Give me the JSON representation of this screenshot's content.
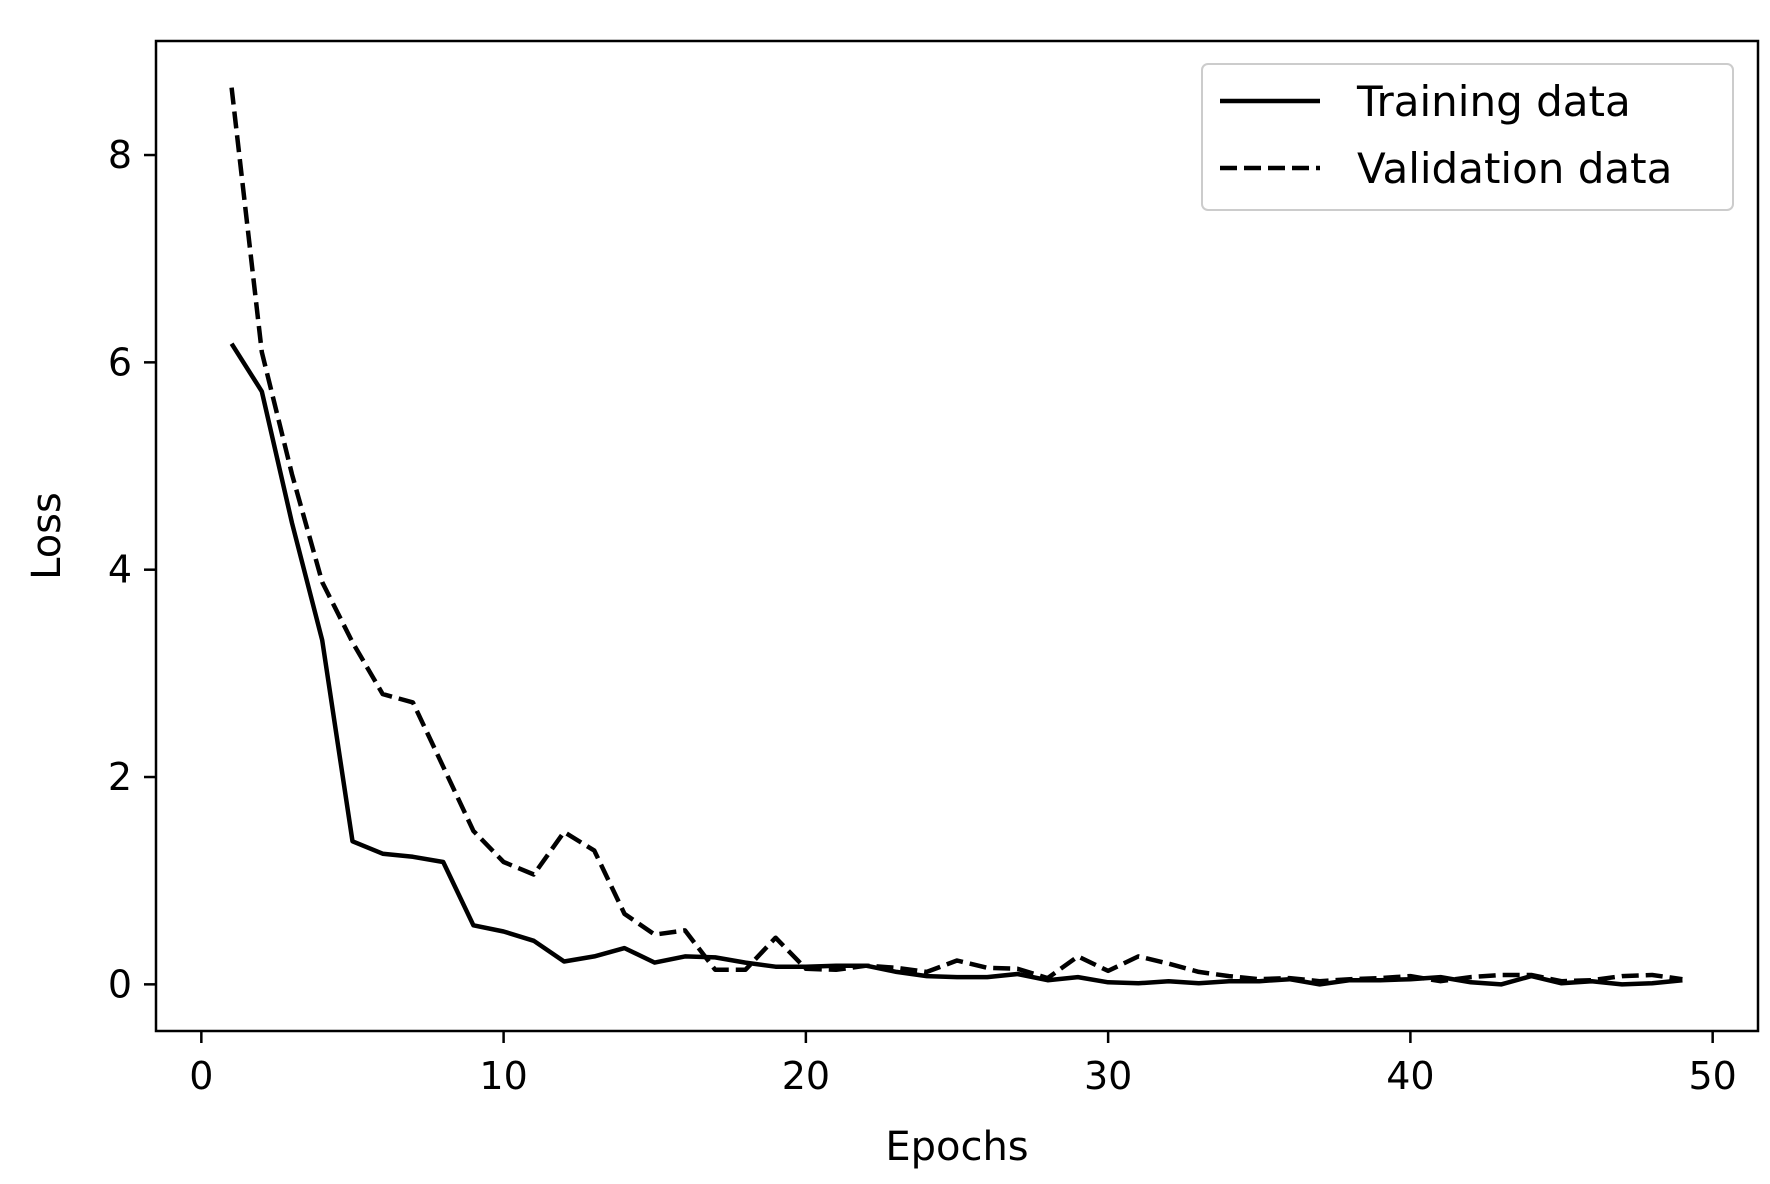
{
  "chart_data": {
    "type": "line",
    "title": "",
    "xlabel": "Epochs",
    "ylabel": "Loss",
    "xlim": [
      -1.5,
      51.5
    ],
    "ylim": [
      -0.45,
      9.1
    ],
    "xticks": [
      0,
      10,
      20,
      30,
      40,
      50
    ],
    "yticks": [
      0,
      2,
      4,
      6,
      8
    ],
    "grid": false,
    "legend_position": "top-right",
    "series": [
      {
        "name": "Training data",
        "style": "solid",
        "color": "#000000",
        "x": [
          1,
          2,
          3,
          4,
          5,
          6,
          7,
          8,
          9,
          10,
          11,
          12,
          13,
          14,
          15,
          16,
          17,
          18,
          19,
          20,
          21,
          22,
          23,
          24,
          25,
          26,
          27,
          28,
          29,
          30,
          31,
          32,
          33,
          34,
          35,
          36,
          37,
          38,
          39,
          40,
          41,
          42,
          43,
          44,
          45,
          46,
          47,
          48,
          49
        ],
        "values": [
          6.18,
          5.72,
          4.45,
          3.32,
          1.38,
          1.26,
          1.23,
          1.18,
          0.57,
          0.51,
          0.42,
          0.22,
          0.27,
          0.35,
          0.21,
          0.27,
          0.26,
          0.21,
          0.17,
          0.17,
          0.18,
          0.18,
          0.12,
          0.08,
          0.07,
          0.07,
          0.1,
          0.04,
          0.07,
          0.02,
          0.01,
          0.03,
          0.01,
          0.03,
          0.03,
          0.05,
          0.0,
          0.04,
          0.04,
          0.05,
          0.07,
          0.02,
          0.0,
          0.08,
          0.01,
          0.03,
          0.0,
          0.01,
          0.04
        ]
      },
      {
        "name": "Validation data",
        "style": "dashed",
        "color": "#000000",
        "x": [
          1,
          2,
          3,
          4,
          5,
          6,
          7,
          8,
          9,
          10,
          11,
          12,
          13,
          14,
          15,
          16,
          17,
          18,
          19,
          20,
          21,
          22,
          23,
          24,
          25,
          26,
          27,
          28,
          29,
          30,
          31,
          32,
          33,
          34,
          35,
          36,
          37,
          38,
          39,
          40,
          41,
          42,
          43,
          44,
          45,
          46,
          47,
          48,
          49
        ],
        "values": [
          8.65,
          6.1,
          4.92,
          3.88,
          3.3,
          2.8,
          2.72,
          2.1,
          1.48,
          1.18,
          1.06,
          1.47,
          1.29,
          0.68,
          0.48,
          0.52,
          0.14,
          0.14,
          0.45,
          0.15,
          0.14,
          0.18,
          0.16,
          0.12,
          0.23,
          0.16,
          0.15,
          0.06,
          0.27,
          0.13,
          0.27,
          0.2,
          0.12,
          0.08,
          0.05,
          0.06,
          0.03,
          0.05,
          0.06,
          0.08,
          0.03,
          0.07,
          0.09,
          0.09,
          0.03,
          0.04,
          0.08,
          0.09,
          0.05
        ]
      }
    ]
  }
}
